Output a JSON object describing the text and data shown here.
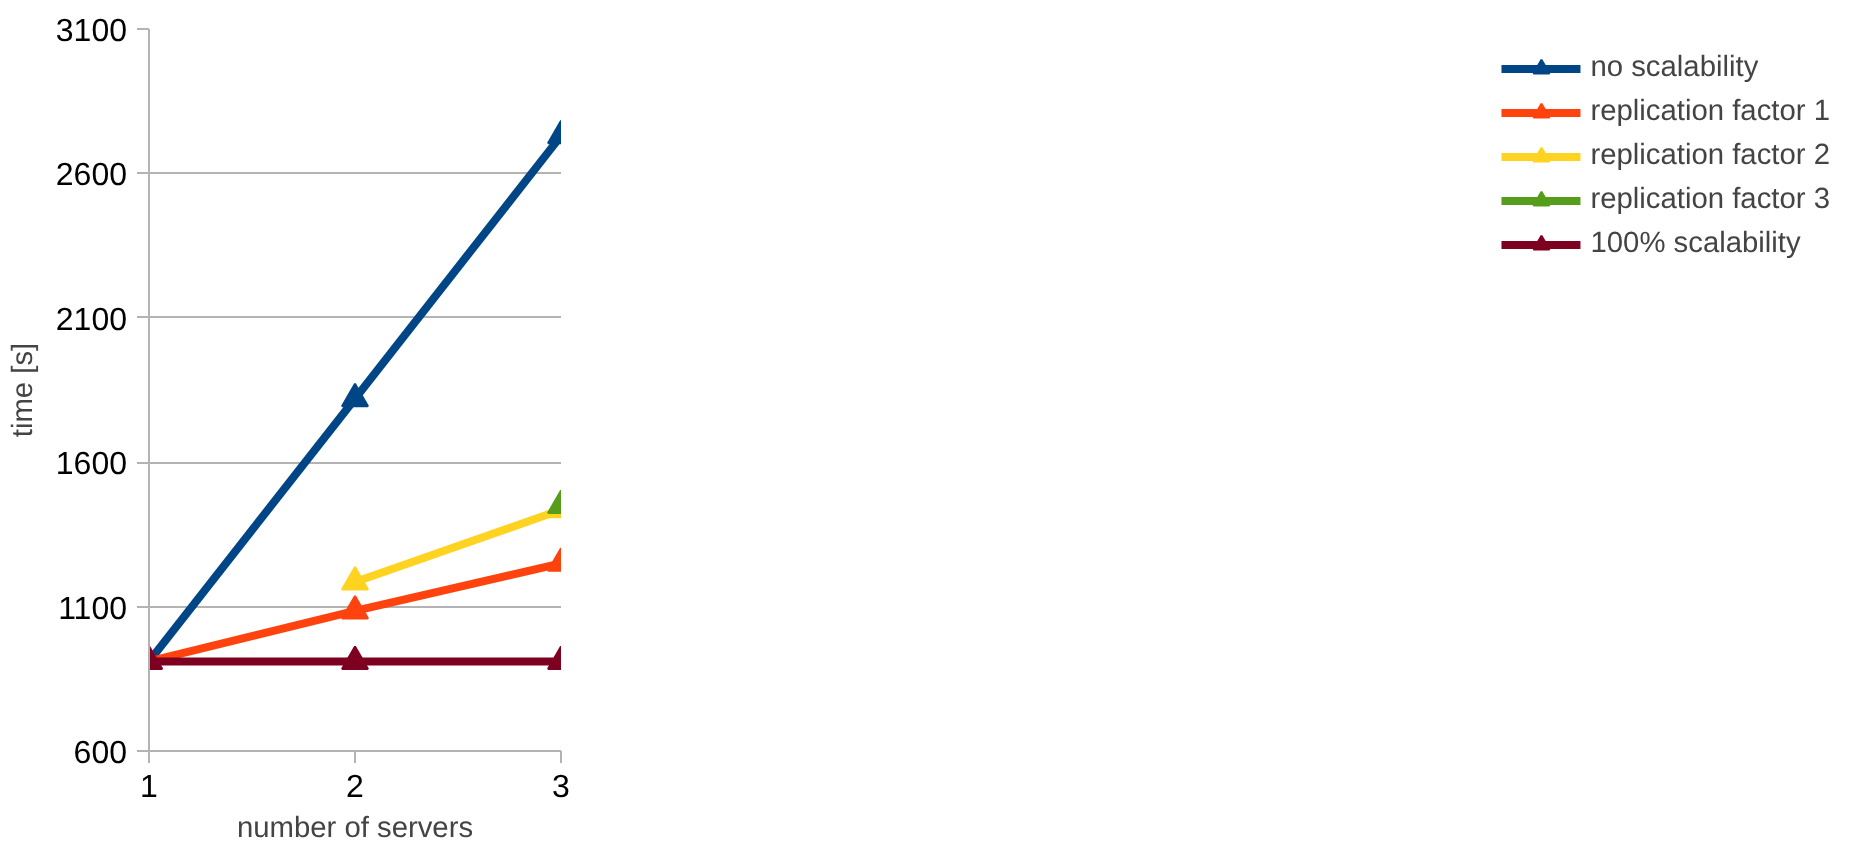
{
  "chart_data": {
    "type": "line",
    "xlabel": "number of servers",
    "ylabel": "time [s]",
    "x": [
      1,
      2,
      3
    ],
    "xlim": [
      1,
      3
    ],
    "xticks": [
      1,
      2,
      3
    ],
    "ylim": [
      600,
      3100
    ],
    "yticks": [
      600,
      1100,
      1600,
      2100,
      2600,
      3100
    ],
    "grid": "y",
    "legend": "right",
    "marker": "triangle",
    "line_style": "solid",
    "series": [
      {
        "name": "no scalability",
        "color": "#004586",
        "values": [
          910,
          1820,
          2730
        ]
      },
      {
        "name": "replication factor 1",
        "color": "#ff420e",
        "values": [
          910,
          1085,
          1250
        ]
      },
      {
        "name": "replication factor 2",
        "color": "#ffd320",
        "values": [
          null,
          1185,
          1435
        ]
      },
      {
        "name": "replication factor 3",
        "color": "#579d1c",
        "values": [
          null,
          null,
          1450
        ]
      },
      {
        "name": "100% scalability",
        "color": "#7e0021",
        "values": [
          910,
          910,
          910
        ]
      }
    ]
  }
}
